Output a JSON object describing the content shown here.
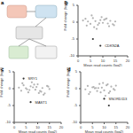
{
  "diagram": {
    "title": "a"
  },
  "chart_data": [
    {
      "type": "scatter",
      "title": "b",
      "x_label": "Mean read counts (log2)",
      "y_label": "Fold change (log2)",
      "xlim": [
        0,
        20
      ],
      "xticks": [
        0,
        5,
        10,
        15,
        20
      ],
      "ylim": [
        -10,
        5
      ],
      "yticks": [
        -10,
        -5,
        0,
        5
      ],
      "grid": false,
      "series": [
        {
          "color": "#b3b3b3",
          "marker": "circle",
          "x": [
            2,
            3,
            4,
            5,
            6,
            7,
            8,
            9,
            10,
            11,
            12,
            13,
            14,
            15,
            3.5,
            6.5,
            9.5,
            12.5,
            5.5,
            8.5,
            11.5,
            14.5,
            7.5,
            10.5
          ],
          "values": [
            0.5,
            1,
            0.2,
            -0.5,
            1.2,
            0.3,
            -0.8,
            0.6,
            -0.2,
            0.9,
            -0.4,
            0.4,
            -0.6,
            0.2,
            -1,
            -1.5,
            1.5,
            -1.2,
            2,
            -0.3,
            1.1,
            -0.9,
            -2,
            0.7
          ]
        },
        {
          "color": "#333333",
          "marker": "circle",
          "x": [
            6,
            9
          ],
          "values": [
            -5,
            -7
          ]
        }
      ],
      "annotations": [
        {
          "text": "CDKN2A",
          "x": 9,
          "y": -7
        }
      ]
    },
    {
      "type": "scatter",
      "title": "c",
      "x_label": "Mean read counts (log2)",
      "y_label": "Fold change (log2)",
      "xlim": [
        0,
        20
      ],
      "xticks": [
        0,
        5,
        10,
        15,
        20
      ],
      "ylim": [
        -10,
        5
      ],
      "yticks": [
        -10,
        -5,
        0,
        5
      ],
      "grid": false,
      "series": [
        {
          "color": "#b3b3b3",
          "marker": "circle",
          "x": [
            2,
            3,
            4,
            5,
            6,
            7,
            8,
            9,
            10,
            11,
            12,
            13,
            14,
            15,
            3.5,
            6.5,
            9.5,
            12.5,
            5.5,
            8.5,
            11.5,
            14.5,
            7.5,
            10.5
          ],
          "values": [
            0.3,
            -0.6,
            1,
            0.1,
            -1.1,
            0.7,
            0.4,
            -0.3,
            1.3,
            -0.7,
            0.2,
            -1.4,
            0.8,
            -0.1,
            1.6,
            -0.4,
            0.5,
            -1.8,
            -0.2,
            1.2,
            -0.9,
            0.6,
            1.9,
            -1.3
          ]
        },
        {
          "color": "#333333",
          "marker": "circle",
          "x": [
            4,
            7
          ],
          "values": [
            3,
            -4
          ]
        }
      ],
      "annotations": [
        {
          "text": "SRY1",
          "x": 4,
          "y": 3
        },
        {
          "text": "MAST1",
          "x": 7,
          "y": -4
        }
      ]
    },
    {
      "type": "scatter",
      "title": "d",
      "x_label": "Mean read counts (log2)",
      "y_label": "Fold change (log2)",
      "xlim": [
        0,
        20
      ],
      "xticks": [
        0,
        5,
        10,
        15,
        20
      ],
      "ylim": [
        -10,
        5
      ],
      "yticks": [
        -10,
        -5,
        0,
        5
      ],
      "grid": false,
      "series": [
        {
          "color": "#b3b3b3",
          "marker": "circle",
          "x": [
            2,
            3,
            4,
            5,
            6,
            7,
            8,
            9,
            10,
            11,
            12,
            13,
            14,
            15,
            3.5,
            6.5,
            9.5,
            12.5,
            5.5,
            8.5,
            11.5,
            14.5,
            7.5,
            10.5
          ],
          "values": [
            -0.2,
            0.8,
            -1,
            0.4,
            0.1,
            -0.7,
            1.4,
            0.3,
            -0.5,
            1,
            -1.3,
            0.6,
            -0.1,
            0.9,
            -1.6,
            0.2,
            1.7,
            -0.8,
            0.5,
            -1.1,
            1.3,
            -0.4,
            0.2,
            -2.1
          ]
        },
        {
          "color": "#333333",
          "marker": "circle",
          "x": [
            10,
            12
          ],
          "values": [
            -3,
            -5
          ]
        }
      ],
      "annotations": [
        {
          "text": "SNORD113",
          "x": 10,
          "y": -3
        }
      ]
    }
  ]
}
